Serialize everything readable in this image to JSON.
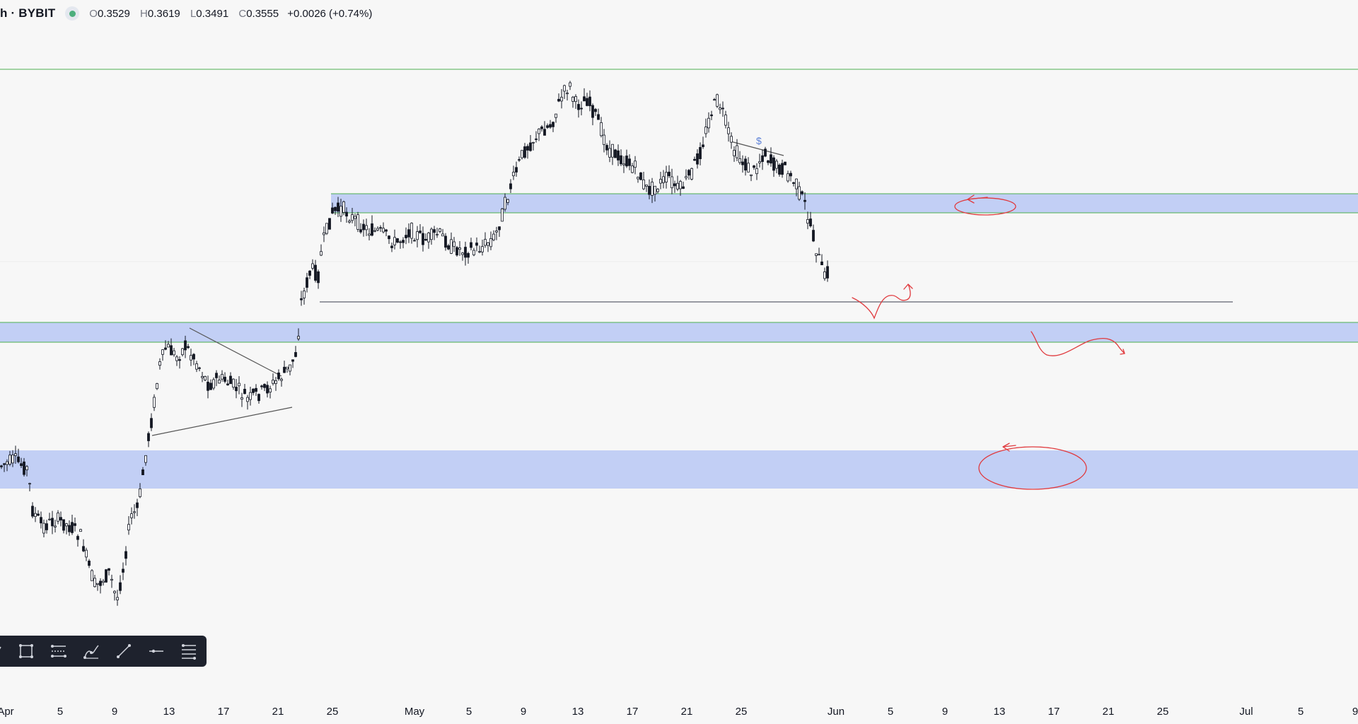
{
  "header": {
    "symbol": "h · BYBIT",
    "ohlc": {
      "o_key": "O",
      "o": "0.3529",
      "h_key": "H",
      "h": "0.3619",
      "l_key": "L",
      "l": "0.3491",
      "c_key": "C",
      "c": "0.3555",
      "change": "+0.0026 (+0.74%)"
    }
  },
  "xaxis": {
    "labels": [
      "Apr",
      "5",
      "9",
      "13",
      "17",
      "21",
      "25",
      "May",
      "5",
      "9",
      "13",
      "17",
      "21",
      "25",
      "Jun",
      "5",
      "9",
      "13",
      "17",
      "21",
      "25",
      "Jul",
      "5",
      "9"
    ]
  },
  "annotations": {
    "dollar_label": "$"
  },
  "toolbar": {
    "tools": [
      "brush-icon",
      "rectangle-icon",
      "parallel-channel-icon",
      "path-icon",
      "trend-line-icon",
      "horizontal-ray-icon",
      "fib-retracement-icon"
    ]
  },
  "colors": {
    "zone_fill": "#b9c8f5",
    "zone_border": "#4caf50",
    "candle": "#131722",
    "drawing_red": "#e03a3e",
    "toolbar_bg": "#1e222d",
    "status_green": "#4caf7d"
  }
}
